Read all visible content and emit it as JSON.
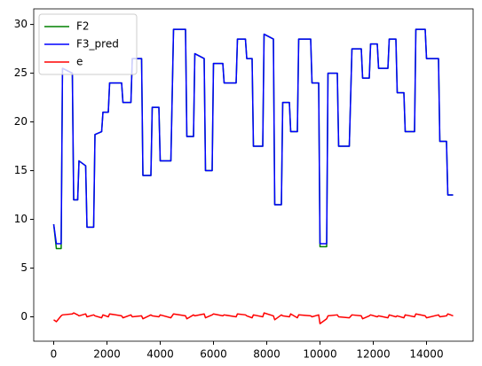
{
  "chart_data": {
    "type": "line",
    "x": [
      0,
      100,
      280,
      330,
      700,
      750,
      900,
      950,
      1200,
      1250,
      1500,
      1550,
      1800,
      1850,
      2050,
      2100,
      2550,
      2600,
      2900,
      2950,
      3300,
      3350,
      3650,
      3700,
      3950,
      4000,
      4400,
      4500,
      4950,
      5000,
      5250,
      5300,
      5650,
      5700,
      5950,
      6000,
      6350,
      6400,
      6850,
      6900,
      7200,
      7250,
      7450,
      7500,
      7850,
      7900,
      8250,
      8300,
      8550,
      8600,
      8850,
      8900,
      9150,
      9200,
      9650,
      9700,
      9950,
      10000,
      10250,
      10300,
      10650,
      10700,
      11100,
      11200,
      11550,
      11600,
      11850,
      11900,
      12150,
      12200,
      12550,
      12600,
      12850,
      12900,
      13150,
      13200,
      13550,
      13600,
      13950,
      14000,
      14450,
      14500,
      14750,
      14800,
      15000
    ],
    "series": [
      {
        "name": "F2",
        "color": "green",
        "values": [
          9.5,
          7,
          7,
          25.5,
          25,
          12,
          12,
          16,
          15.5,
          9.2,
          9.2,
          18.7,
          19,
          21,
          21,
          24,
          24,
          22,
          22,
          26.5,
          26.5,
          14.5,
          14.5,
          21.5,
          21.5,
          16,
          16,
          29.5,
          29.5,
          18.5,
          18.5,
          27,
          26.5,
          15,
          15,
          26,
          26,
          24,
          24,
          28.5,
          28.5,
          26.5,
          26.5,
          17.5,
          17.5,
          29,
          28.5,
          11.5,
          11.5,
          22,
          22,
          19,
          19,
          28.5,
          28.5,
          24,
          24,
          7.2,
          7.2,
          25,
          25,
          17.5,
          17.5,
          27.5,
          27.5,
          24.5,
          24.5,
          28,
          28,
          25.5,
          25.5,
          28.5,
          28.5,
          23,
          23,
          19,
          19,
          29.5,
          29.5,
          26.5,
          26.5,
          18,
          18,
          12.5,
          12.5
        ]
      },
      {
        "name": "F3_pred",
        "color": "blue",
        "values": [
          9.5,
          7.5,
          7.5,
          25.5,
          25,
          12,
          12,
          16,
          15.5,
          9.2,
          9.2,
          18.7,
          19,
          21,
          21,
          24,
          24,
          22,
          22,
          26.5,
          26.5,
          14.5,
          14.5,
          21.5,
          21.5,
          16,
          16,
          29.5,
          29.5,
          18.5,
          18.5,
          27,
          26.5,
          15,
          15,
          26,
          26,
          24,
          24,
          28.5,
          28.5,
          26.5,
          26.5,
          17.5,
          17.5,
          29,
          28.5,
          11.5,
          11.5,
          22,
          22,
          19,
          19,
          28.5,
          28.5,
          24,
          24,
          7.5,
          7.5,
          25,
          25,
          17.5,
          17.5,
          27.5,
          27.5,
          24.5,
          24.5,
          28,
          28,
          25.5,
          25.5,
          28.5,
          28.5,
          23,
          23,
          19,
          19,
          29.5,
          29.5,
          26.5,
          26.5,
          18,
          18,
          12.5,
          12.5
        ]
      },
      {
        "name": "e",
        "color": "red",
        "values": [
          -0.3,
          -0.5,
          0.1,
          0.2,
          0.3,
          0.4,
          0.2,
          0.1,
          0.3,
          0,
          0.2,
          0.1,
          -0.1,
          0.2,
          0,
          0.3,
          0.1,
          -0.1,
          0.2,
          0,
          0.1,
          -0.2,
          0.2,
          0.1,
          0,
          0.2,
          -0.1,
          0.3,
          0.1,
          -0.2,
          0.2,
          0.1,
          0.3,
          -0.1,
          0.2,
          0.3,
          0.1,
          0.2,
          0,
          0.3,
          0.2,
          0.1,
          -0.1,
          0.2,
          0,
          0.4,
          0.1,
          -0.3,
          0.2,
          0.1,
          0,
          0.3,
          -0.1,
          0.2,
          0.1,
          0,
          0.2,
          -0.7,
          -0.2,
          0.1,
          0.2,
          0,
          -0.1,
          0.2,
          0.1,
          -0.2,
          0.1,
          0.2,
          0,
          0.1,
          -0.1,
          0.2,
          0,
          0.1,
          -0.1,
          0.2,
          0,
          0.3,
          0.1,
          -0.1,
          0.2,
          0,
          0.1,
          0.3,
          0.1
        ]
      }
    ],
    "xlim": [
      -750,
      15750
    ],
    "ylim": [
      -2.5,
      31.6
    ],
    "xticks": [
      0,
      2000,
      4000,
      6000,
      8000,
      10000,
      12000,
      14000
    ],
    "yticks": [
      0,
      5,
      10,
      15,
      20,
      25,
      30
    ],
    "legend": "upper left",
    "grid": false
  }
}
